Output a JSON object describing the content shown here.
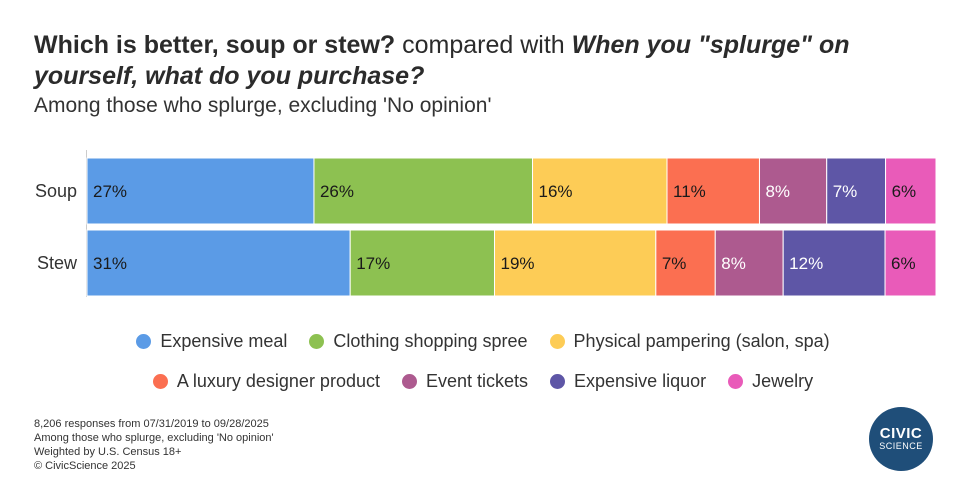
{
  "title": {
    "part1": "Which is better, soup or stew?",
    "part_mid": " compared with ",
    "part2": "When you \"splurge\" on yourself, what do you purchase?"
  },
  "subtitle": "Among those who splurge, excluding 'No opinion'",
  "chart_data": {
    "type": "bar",
    "orientation": "horizontal",
    "stacked": true,
    "normalized_percent": true,
    "categories": [
      "Soup",
      "Stew"
    ],
    "series": [
      {
        "name": "Expensive meal",
        "color": "#5b9be6",
        "values": [
          27,
          31
        ],
        "text_color": "#1a1a1a"
      },
      {
        "name": "Clothing shopping spree",
        "color": "#8dc151",
        "values": [
          26,
          17
        ],
        "text_color": "#1a1a1a"
      },
      {
        "name": "Physical pampering (salon, spa)",
        "color": "#fdcc56",
        "values": [
          16,
          19
        ],
        "text_color": "#1a1a1a"
      },
      {
        "name": "A luxury designer product",
        "color": "#fb6f51",
        "values": [
          11,
          7
        ],
        "text_color": "#1a1a1a"
      },
      {
        "name": "Event tickets",
        "color": "#ad5a8f",
        "values": [
          8,
          8
        ],
        "text_color": "#ffffff"
      },
      {
        "name": "Expensive liquor",
        "color": "#5e56a6",
        "values": [
          7,
          12
        ],
        "text_color": "#ffffff"
      },
      {
        "name": "Jewelry",
        "color": "#e95bb9",
        "values": [
          6,
          6
        ],
        "text_color": "#1a1a1a"
      }
    ],
    "legend_placement": "bottom",
    "grid": false
  },
  "footer": {
    "lines": [
      "8,206 responses from 07/31/2019 to 09/28/2025",
      "Among those who splurge, excluding 'No opinion'",
      "Weighted by U.S. Census 18+",
      "© CivicScience 2025"
    ]
  },
  "logo": {
    "line1": "CIVIC",
    "line2": "SCIENCE"
  }
}
